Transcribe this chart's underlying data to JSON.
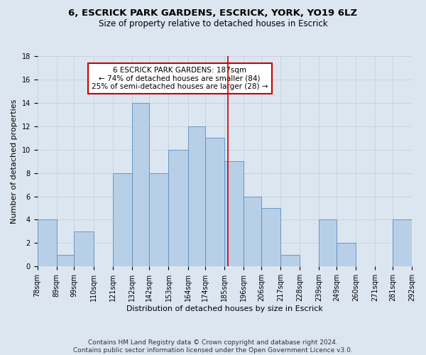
{
  "title": "6, ESCRICK PARK GARDENS, ESCRICK, YORK, YO19 6LZ",
  "subtitle": "Size of property relative to detached houses in Escrick",
  "xlabel": "Distribution of detached houses by size in Escrick",
  "ylabel": "Number of detached properties",
  "bin_edges": [
    78,
    89,
    99,
    110,
    121,
    132,
    142,
    153,
    164,
    174,
    185,
    196,
    206,
    217,
    228,
    239,
    249,
    260,
    271,
    281,
    292
  ],
  "bin_labels": [
    "78sqm",
    "89sqm",
    "99sqm",
    "110sqm",
    "121sqm",
    "132sqm",
    "142sqm",
    "153sqm",
    "164sqm",
    "174sqm",
    "185sqm",
    "196sqm",
    "206sqm",
    "217sqm",
    "228sqm",
    "239sqm",
    "249sqm",
    "260sqm",
    "271sqm",
    "281sqm",
    "292sqm"
  ],
  "counts": [
    4,
    1,
    3,
    0,
    8,
    14,
    8,
    10,
    12,
    11,
    9,
    6,
    5,
    1,
    0,
    4,
    2,
    0,
    0,
    4
  ],
  "bar_color": "#b8cfe8",
  "bar_edge_color": "#5a8fc0",
  "grid_color": "#c8d4de",
  "background_color": "#dce6f0",
  "ref_line_color": "#cc0000",
  "annotation_box_text": "6 ESCRICK PARK GARDENS: 187sqm\n← 74% of detached houses are smaller (84)\n25% of semi-detached houses are larger (28) →",
  "annotation_box_edge_color": "#cc0000",
  "ylim": [
    0,
    18
  ],
  "yticks": [
    0,
    2,
    4,
    6,
    8,
    10,
    12,
    14,
    16,
    18
  ],
  "footer_line1": "Contains HM Land Registry data © Crown copyright and database right 2024.",
  "footer_line2": "Contains public sector information licensed under the Open Government Licence v3.0.",
  "title_fontsize": 9.5,
  "subtitle_fontsize": 8.5,
  "axis_label_fontsize": 8,
  "tick_fontsize": 7,
  "annotation_fontsize": 7.5,
  "footer_fontsize": 6.5
}
